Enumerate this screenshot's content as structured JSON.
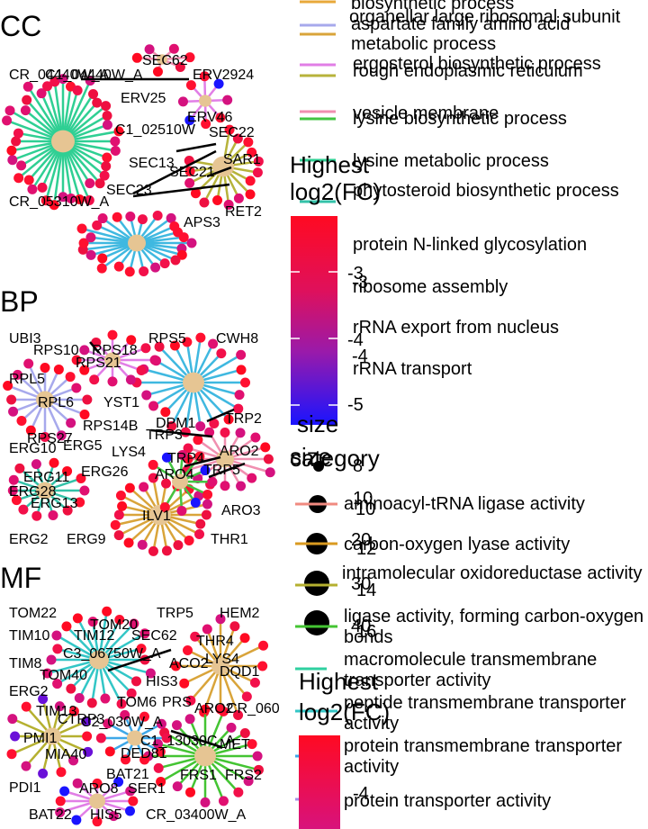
{
  "panels": [
    {
      "title": "CC",
      "nodes": [
        "CR_04440W_A",
        "C1_04440W_A",
        "SEC62",
        "ERV2924",
        "ERV25",
        "ERV46",
        "C1_02510W",
        "SEC22",
        "SEC13",
        "SAR1",
        "SEC21",
        "SEC23",
        "CR_05310W_A",
        "RET2",
        "APS3"
      ]
    },
    {
      "title": "BP",
      "nodes": [
        "UBI3",
        "RPS10",
        "RPS18",
        "RPS5",
        "CWH8",
        "RPS21",
        "RPL5",
        "RPL6",
        "YST1",
        "RPS14B",
        "DPM1",
        "TRP2",
        "RPS27",
        "TRP3",
        "ERG10",
        "ERG5",
        "LYS4",
        "ARO2",
        "TRP4",
        "TRP5",
        "ERG11",
        "ERG26",
        "ARO4",
        "ERG28",
        "ERG13",
        "ILV1",
        "ARO3",
        "ERG2",
        "ERG9",
        "THR1"
      ]
    },
    {
      "title": "MF",
      "nodes": [
        "TOM22",
        "TRP5",
        "HEM2",
        "TOM20",
        "TIM10",
        "TIM12",
        "THR4",
        "C3_06750W_A",
        "SEC62",
        "LYS4",
        "TIM8",
        "ACO2",
        "DQD1",
        "TOM40",
        "HIS3",
        "ERG2",
        "TOM6",
        "PRS",
        "ARO2",
        "CR_060",
        "TIM13",
        "C2_030W_A",
        "CTRP3",
        "PMI1",
        "C1_13030C_A",
        "MET",
        "MIA40",
        "DED81",
        "BAT21",
        "FRS1",
        "FRS2",
        "PDI1",
        "ARO8",
        "SER1",
        "BAT22",
        "HIS5",
        "CR_03400W_A"
      ]
    }
  ],
  "legend_categories": [
    {
      "label": "biosynthetic process",
      "color": "#e8a83a"
    },
    {
      "label": "organellar large ribosomal subunit",
      "color": "#a7a9ec"
    },
    {
      "label": "aspartate family amino acid metabolic process",
      "color": "#d9a43a"
    },
    {
      "label": "ergosterol biosynthetic process",
      "color": "#e17ee6"
    },
    {
      "label": "rough endoplasmic reticulum",
      "color": "#b7b33b"
    },
    {
      "label": "vesicle membrane",
      "color": "#f08fb0"
    },
    {
      "label": "lysine biosynthetic process",
      "color": "#43c443"
    },
    {
      "label": "lysine metabolic process",
      "color": "#2fcf93"
    },
    {
      "label": "phytosteroid biosynthetic process",
      "color": "#33c2a8"
    },
    {
      "label": "protein N-linked glycosylation",
      "color": "#3fb8e0"
    },
    {
      "label": "ribosome assembly",
      "color": "#7c9ded"
    },
    {
      "label": "rRNA export from nucleus",
      "color": "#c79cf0"
    },
    {
      "label": "rRNA transport",
      "color": "#f39ad0"
    }
  ],
  "colorbar1": {
    "title_a": "Highest",
    "title_b": "log2(FC)",
    "ticks": [
      "-3",
      "-3",
      "-4",
      "-4",
      "-5"
    ]
  },
  "size_legend": {
    "title_a": "size",
    "title_b": "size",
    "items": [
      "8",
      "10",
      "10",
      "20",
      "12",
      "30",
      "14",
      "40",
      "16"
    ]
  },
  "category_legend": {
    "title": "category",
    "items": [
      {
        "label": "aminoacyl-tRNA ligase activity",
        "color": "#f08a80"
      },
      {
        "label": "carbon-oxygen lyase activity",
        "color": "#d99a20"
      },
      {
        "label": "intramolecular oxidoreductase activity",
        "color": "#b5b030"
      },
      {
        "label": "ligase activity, forming carbon-oxygen bonds",
        "color": "#44c433"
      },
      {
        "label": "macromolecule transmembrane transporter activity",
        "color": "#2fd0a0"
      },
      {
        "label": "peptide transmembrane transporter activity",
        "color": "#33c6c6"
      },
      {
        "label": "protein transmembrane transporter activity",
        "color": "#3fa8e8"
      },
      {
        "label": "protein transporter activity",
        "color": "#a78ee8"
      }
    ]
  },
  "colorbar2": {
    "title_a": "Highest",
    "title_b": "log2(FC)",
    "ticks": [
      "-4"
    ]
  },
  "colors": {
    "node_fc_high": "#ff0a2a",
    "node_fc_low": "#1a14ff",
    "hub": "#e6c593",
    "connector": "#000000"
  }
}
